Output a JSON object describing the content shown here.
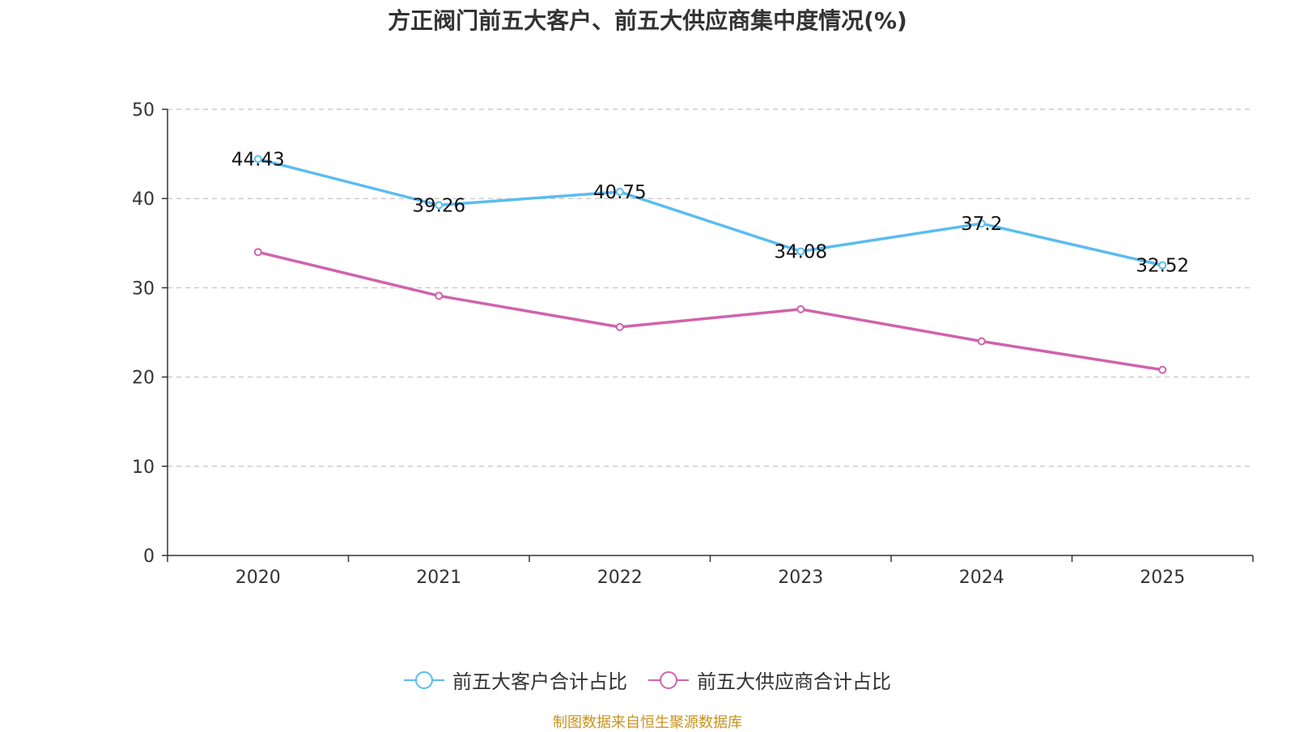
{
  "chart_data": {
    "type": "line",
    "title": "方正阀门前五大客户、前五大供应商集中度情况(%)",
    "categories": [
      "2020",
      "2021",
      "2022",
      "2023",
      "2024",
      "2025"
    ],
    "ylim": [
      0,
      50
    ],
    "yticks": [
      0,
      10,
      20,
      30,
      40,
      50
    ],
    "grid": true,
    "legend_position": "bottom",
    "series": [
      {
        "name": "前五大客户合计占比",
        "color": "#5bbcf0",
        "values": [
          44.43,
          39.26,
          40.75,
          34.08,
          37.2,
          32.52
        ],
        "labels": [
          "44.43",
          "39.26",
          "40.75",
          "34.08",
          "37.2",
          "32.52"
        ]
      },
      {
        "name": "前五大供应商合计占比",
        "color": "#d063ad",
        "values": [
          34.0,
          29.1,
          25.6,
          27.6,
          24.0,
          20.8
        ],
        "labels": null
      }
    ]
  },
  "source": "制图数据来自恒生聚源数据库"
}
